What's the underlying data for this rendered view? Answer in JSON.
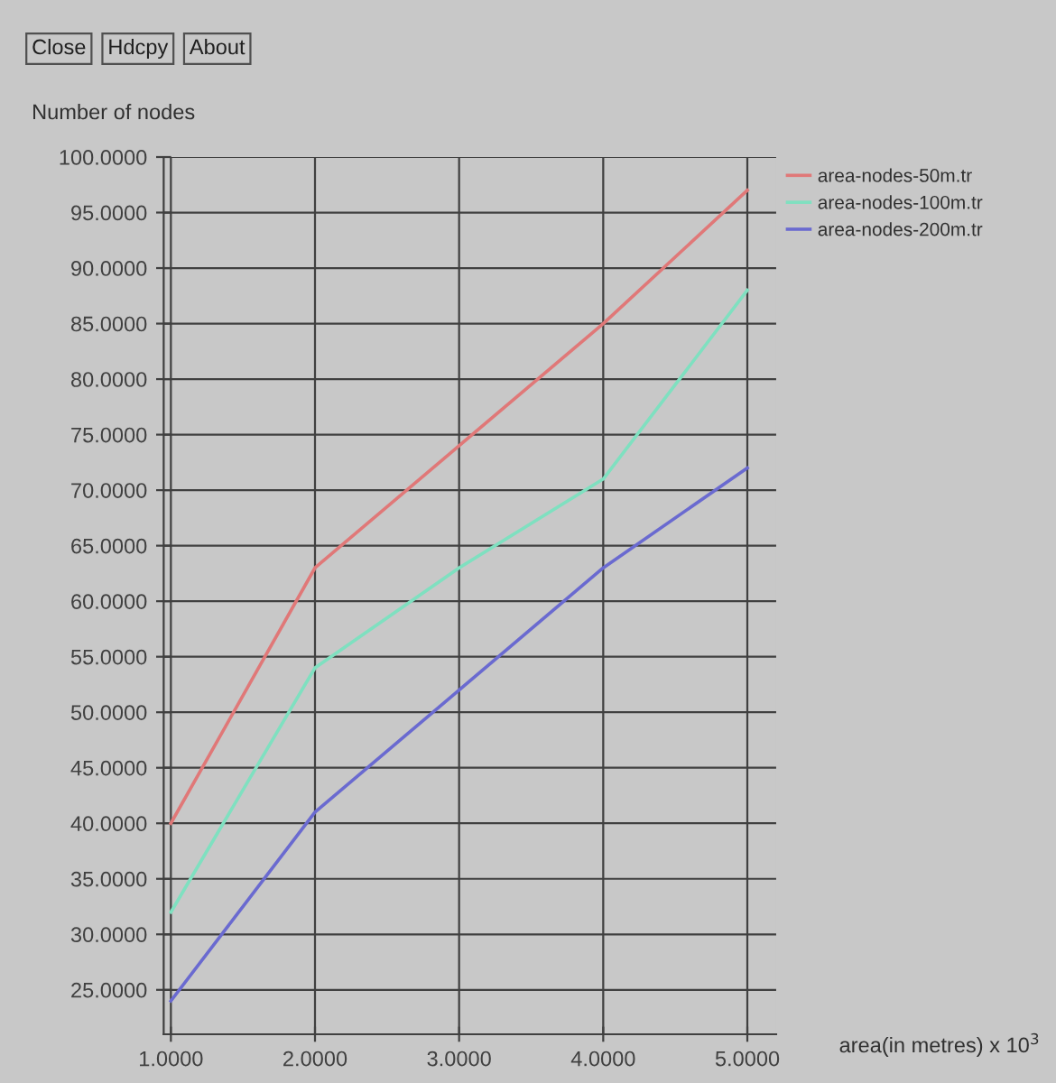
{
  "chart_data": {
    "type": "line",
    "xlabel": "area(in metres) x 10$^{3}$",
    "ylabel": "Number of nodes",
    "annotations": [
      "Close",
      "Hdcpy",
      "About"
    ],
    "x": [
      1,
      2,
      3,
      4,
      5
    ],
    "series": [
      {
        "name": "area-nodes-50m.tr",
        "color": "#e07878",
        "values": [
          40,
          63,
          74,
          85,
          97
        ]
      },
      {
        "name": "area-nodes-100m.tr",
        "color": "#7fe0c0",
        "values": [
          32,
          54,
          63,
          71,
          88
        ]
      },
      {
        "name": "area-nodes-200m.tr",
        "color": "#6a6ad0",
        "values": [
          24,
          41,
          52,
          63,
          72
        ]
      }
    ],
    "xlim": [
      0.95,
      5.2
    ],
    "ylim": [
      21,
      100
    ],
    "xticks": [
      {
        "value": 1,
        "label": "1.0000"
      },
      {
        "value": 2,
        "label": "2.0000"
      },
      {
        "value": 3,
        "label": "3.0000"
      },
      {
        "value": 4,
        "label": "4.0000"
      },
      {
        "value": 5,
        "label": "5.0000"
      }
    ],
    "yticks": [
      {
        "value": 25,
        "label": "25.0000"
      },
      {
        "value": 30,
        "label": "30.0000"
      },
      {
        "value": 35,
        "label": "35.0000"
      },
      {
        "value": 40,
        "label": "40.0000"
      },
      {
        "value": 45,
        "label": "45.0000"
      },
      {
        "value": 50,
        "label": "50.0000"
      },
      {
        "value": 55,
        "label": "55.0000"
      },
      {
        "value": 60,
        "label": "60.0000"
      },
      {
        "value": 65,
        "label": "65.0000"
      },
      {
        "value": 70,
        "label": "70.0000"
      },
      {
        "value": 75,
        "label": "75.0000"
      },
      {
        "value": 80,
        "label": "80.0000"
      },
      {
        "value": 85,
        "label": "85.0000"
      },
      {
        "value": 90,
        "label": "90.0000"
      },
      {
        "value": 95,
        "label": "95.0000"
      },
      {
        "value": 100,
        "label": "100.0000"
      }
    ],
    "grid": true,
    "legend": "top right",
    "marker": "none",
    "line_style": "solid"
  }
}
